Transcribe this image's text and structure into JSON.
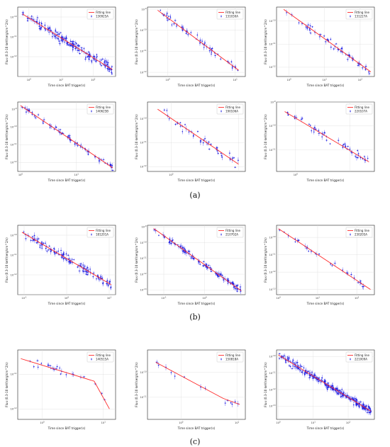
{
  "figure": {
    "panel_labels": [
      "(a)",
      "(b)",
      "(c)"
    ],
    "colors": {
      "points": "#1a1adb",
      "fit": "#ff2a2a",
      "grid": "#d9d9d9"
    },
    "legend_fit_label": "Fitting line"
  },
  "chart_data": [
    {
      "type": "scatter",
      "grb": "130925A",
      "group": "a",
      "xscale": "log",
      "yscale": "log",
      "xlabel": "Time since BAT trigger(s)",
      "ylabel": "Flux (0.3-10 keV)(erg/cm^2/s)",
      "xlim_exp": [
        -0.35,
        2.7
      ],
      "ylim_exp": [
        -13.0,
        -9.5
      ],
      "x_ticks": [
        "10^0",
        "10^1",
        "10^2"
      ],
      "y_ticks": [
        "10^-10",
        "10^-11",
        "10^-12"
      ],
      "legend": [
        "Fitting line",
        "130925A"
      ],
      "fit_exp": [
        [
          -0.2,
          -9.85
        ],
        [
          2.6,
          -12.65
        ]
      ],
      "n_points": 180,
      "seed": 11,
      "scatter": 0.25
    },
    {
      "type": "scatter",
      "grb": "131030A",
      "group": "a",
      "xscale": "log",
      "yscale": "log",
      "xlabel": "Time since BAT trigger(s)",
      "ylabel": "Flux (0.3-10 keV)(erg/cm^2/s)",
      "xlim_exp": [
        -0.3,
        1.15
      ],
      "ylim_exp": [
        -12.2,
        -8.9
      ],
      "x_ticks": [
        "10^0",
        "10^1"
      ],
      "y_ticks": [
        "10^-9",
        "10^-10",
        "10^-11",
        "10^-12"
      ],
      "legend": [
        "Fitting line",
        "131030A"
      ],
      "fit_exp": [
        [
          -0.15,
          -9.05
        ],
        [
          1.05,
          -11.9
        ]
      ],
      "n_points": 60,
      "seed": 23,
      "scatter": 0.18
    },
    {
      "type": "scatter",
      "grb": "131227A",
      "group": "a",
      "xscale": "log",
      "yscale": "log",
      "xlabel": "Time since BAT trigger(s)",
      "ylabel": "Flux (0.3-10 keV)(erg/cm^2/s)",
      "xlim_exp": [
        -0.35,
        2.4
      ],
      "ylim_exp": [
        -12.4,
        -9.4
      ],
      "x_ticks": [
        "10^0",
        "10^1",
        "10^2"
      ],
      "y_ticks": [
        "10^-10",
        "10^-11",
        "10^-12"
      ],
      "legend": [
        "Fitting line",
        "131227A"
      ],
      "fit_exp": [
        [
          -0.15,
          -9.5
        ],
        [
          2.3,
          -12.2
        ]
      ],
      "n_points": 55,
      "seed": 37,
      "scatter": 0.15
    },
    {
      "type": "scatter",
      "grb": "140625B",
      "group": "a",
      "xscale": "log",
      "yscale": "log",
      "xlabel": "Time since BAT trigger(s)",
      "ylabel": "Flux (0.3-10 keV)(erg/cm^2/s)",
      "xlim_exp": [
        -0.05,
        1.7
      ],
      "ylim_exp": [
        -12.5,
        -8.6
      ],
      "x_ticks": [
        "10^0",
        "10^1"
      ],
      "y_ticks": [
        "10^-9",
        "10^-10",
        "10^-11",
        "10^-12"
      ],
      "legend": [
        "Fitting line",
        "140625B"
      ],
      "fit_exp": [
        [
          0.0,
          -8.8
        ],
        [
          1.65,
          -12.3
        ]
      ],
      "n_points": 70,
      "seed": 41,
      "scatter": 0.15
    },
    {
      "type": "scatter",
      "grb": "190106A",
      "group": "a",
      "xscale": "log",
      "yscale": "log",
      "xlabel": "Time since BAT trigger(s)",
      "ylabel": "Flux (0.3-10 keV)(erg/cm^2/s)",
      "xlim_exp": [
        -0.35,
        1.1
      ],
      "ylim_exp": [
        -12.2,
        -9.3
      ],
      "x_ticks": [
        "10^0"
      ],
      "y_ticks": [
        "10^-10",
        "10^-11",
        "10^-12"
      ],
      "legend": [
        "Fitting line",
        "190106A"
      ],
      "fit_exp": [
        [
          -0.2,
          -9.6
        ],
        [
          1.0,
          -11.9
        ]
      ],
      "n_points": 45,
      "seed": 53,
      "scatter": 0.2
    },
    {
      "type": "scatter",
      "grb": "220107A",
      "group": "a",
      "xscale": "log",
      "yscale": "log",
      "xlabel": "Time since BAT trigger(s)",
      "ylabel": "Flux (0.3-10 keV)(erg/cm^2/s)",
      "xlim_exp": [
        -0.35,
        1.45
      ],
      "ylim_exp": [
        -11.9,
        -9.0
      ],
      "x_ticks": [
        "10^0"
      ],
      "y_ticks": [
        "10^-9",
        "10^-10",
        "10^-11"
      ],
      "legend": [
        "Fitting line",
        "220107A"
      ],
      "fit_exp": [
        [
          -0.2,
          -9.4
        ],
        [
          1.35,
          -11.5
        ]
      ],
      "n_points": 50,
      "seed": 67,
      "scatter": 0.22
    },
    {
      "type": "scatter",
      "grb": "181201A",
      "group": "b",
      "xscale": "log",
      "yscale": "log",
      "xlabel": "Time since BAT trigger(s)",
      "ylabel": "Flux (0.3-10 keV)(erg/cm^2/s)",
      "xlim_exp": [
        -1.15,
        1.15
      ],
      "ylim_exp": [
        -13.0,
        -9.5
      ],
      "x_ticks": [
        "10^-1",
        "10^0",
        "10^1"
      ],
      "y_ticks": [
        "10^-10",
        "10^-11",
        "10^-12"
      ],
      "legend": [
        "Fitting line",
        "181201A"
      ],
      "fit_exp": [
        [
          -1.05,
          -9.85
        ],
        [
          1.05,
          -12.5
        ]
      ],
      "n_points": 130,
      "seed": 71,
      "scatter": 0.22
    },
    {
      "type": "scatter",
      "grb": "210702A",
      "group": "b",
      "xscale": "log",
      "yscale": "log",
      "xlabel": "Time since BAT trigger(s)",
      "ylabel": "Flux (0.3-10 keV)(erg/cm^2/s)",
      "xlim_exp": [
        -1.4,
        1.0
      ],
      "ylim_exp": [
        -13.3,
        -8.9
      ],
      "x_ticks": [
        "10^-1",
        "10^0"
      ],
      "y_ticks": [
        "10^-9",
        "10^-10",
        "10^-11",
        "10^-12",
        "10^-13"
      ],
      "legend": [
        "Fitting line",
        "210702A"
      ],
      "fit_exp": [
        [
          -1.25,
          -9.1
        ],
        [
          0.9,
          -13.05
        ]
      ],
      "n_points": 120,
      "seed": 83,
      "scatter": 0.18
    },
    {
      "type": "scatter",
      "grb": "230205A",
      "group": "b",
      "xscale": "log",
      "yscale": "log",
      "xlabel": "Time since BAT trigger(s)",
      "ylabel": "Flux (0.3-10 keV)(erg/cm^2/s)",
      "xlim_exp": [
        -0.05,
        2.45
      ],
      "ylim_exp": [
        -13.3,
        -9.3
      ],
      "x_ticks": [
        "10^0",
        "10^1",
        "10^2"
      ],
      "y_ticks": [
        "10^-10",
        "10^-11",
        "10^-12",
        "10^-13"
      ],
      "legend": [
        "Fitting line",
        "230205A"
      ],
      "fit_exp": [
        [
          0.0,
          -9.5
        ],
        [
          2.35,
          -13.0
        ]
      ],
      "n_points": 30,
      "seed": 97,
      "scatter": 0.15
    },
    {
      "type": "scatter",
      "grb": "140515A",
      "group": "c",
      "xscale": "log",
      "yscale": "log",
      "xlabel": "Time since BAT trigger(s)",
      "ylabel": "Flux (0.3-10 keV)(erg/cm^2/s)",
      "xlim_exp": [
        -0.4,
        1.2
      ],
      "ylim_exp": [
        -12.3,
        -10.3
      ],
      "x_ticks": [
        "10^0",
        "10^1"
      ],
      "y_ticks": [
        "10^-11",
        "10^-12"
      ],
      "legend": [
        "Fitting line",
        "140515A"
      ],
      "fit_exp": [
        [
          -0.35,
          -10.55
        ],
        [
          0.85,
          -11.2
        ],
        [
          1.1,
          -12.0
        ]
      ],
      "n_points": 25,
      "seed": 101,
      "scatter": 0.1
    },
    {
      "type": "scatter",
      "grb": "150818A",
      "group": "c",
      "xscale": "log",
      "yscale": "log",
      "xlabel": "Time since BAT trigger(s)",
      "ylabel": "Flux (0.3-10 keV)(erg/cm^2/s)",
      "xlim_exp": [
        -0.6,
        1.15
      ],
      "ylim_exp": [
        -11.9,
        -9.1
      ],
      "x_ticks": [
        "10^0",
        "10^1"
      ],
      "y_ticks": [
        "10^-10",
        "10^-11"
      ],
      "legend": [
        "Fitting line",
        "150818A"
      ],
      "fit_exp": [
        [
          -0.45,
          -9.6
        ],
        [
          0.75,
          -11.05
        ],
        [
          1.05,
          -11.3
        ]
      ],
      "n_points": 14,
      "seed": 113,
      "scatter": 0.12
    },
    {
      "type": "scatter",
      "grb": "221009A",
      "group": "c",
      "xscale": "log",
      "yscale": "log",
      "xlabel": "Time since BAT trigger(s)",
      "ylabel": "Flux (0.3-10 keV)(erg/cm^2/s)",
      "xlim_exp": [
        -0.05,
        2.75
      ],
      "ylim_exp": [
        -13.8,
        -9.6
      ],
      "x_ticks": [
        "10^0",
        "10^1",
        "10^2"
      ],
      "y_ticks": [
        "10^-10",
        "10^-11",
        "10^-12",
        "10^-13"
      ],
      "legend": [
        "Fitting line",
        "221009A"
      ],
      "fit_exp": [
        [
          0.0,
          -9.9
        ],
        [
          2.65,
          -13.3
        ]
      ],
      "n_points": 260,
      "seed": 127,
      "scatter": 0.22
    }
  ]
}
